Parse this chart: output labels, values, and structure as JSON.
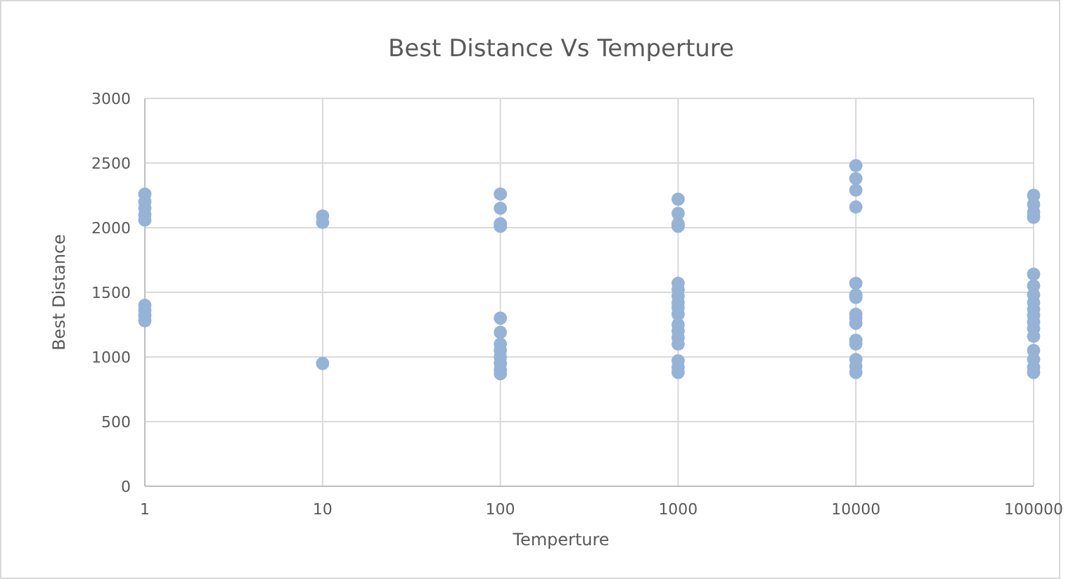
{
  "chart_data": {
    "type": "scatter",
    "title": "Best Distance Vs Temperture",
    "xlabel": "Temperture",
    "ylabel": "Best Distance",
    "log": "x",
    "grid": true,
    "marker": "circle",
    "xlim": [
      1,
      100000
    ],
    "xticks": [
      1,
      10,
      100,
      1000,
      10000,
      100000
    ],
    "ylim": [
      0,
      3000
    ],
    "yticks": [
      0,
      500,
      1000,
      1500,
      2000,
      2500,
      3000
    ],
    "series": [
      {
        "color": "#95b3d7",
        "x": [
          1,
          1,
          1,
          1,
          1,
          1,
          1,
          1,
          1,
          10,
          10,
          10,
          100,
          100,
          100,
          100,
          100,
          100,
          100,
          100,
          100,
          100,
          100,
          100,
          1000,
          1000,
          1000,
          1000,
          1000,
          1000,
          1000,
          1000,
          1000,
          1000,
          1000,
          1000,
          1000,
          1000,
          1000,
          1000,
          1000,
          10000,
          10000,
          10000,
          10000,
          10000,
          10000,
          10000,
          10000,
          10000,
          10000,
          10000,
          10000,
          10000,
          10000,
          10000,
          100000,
          100000,
          100000,
          100000,
          100000,
          100000,
          100000,
          100000,
          100000,
          100000,
          100000,
          100000,
          100000,
          100000,
          100000,
          100000,
          100000
        ],
        "values": [
          2260,
          2200,
          2150,
          2100,
          2060,
          1400,
          1360,
          1320,
          1280,
          2090,
          2040,
          950,
          2260,
          2150,
          2030,
          2010,
          1300,
          1190,
          1100,
          1050,
          1000,
          950,
          900,
          870,
          2220,
          2110,
          2030,
          2010,
          1570,
          1520,
          1470,
          1420,
          1380,
          1330,
          1250,
          1200,
          1150,
          1100,
          970,
          920,
          880,
          2480,
          2380,
          2290,
          2160,
          1570,
          1480,
          1460,
          1330,
          1300,
          1260,
          1130,
          1100,
          980,
          930,
          880,
          2250,
          2180,
          2120,
          2080,
          1640,
          1550,
          1480,
          1420,
          1370,
          1320,
          1270,
          1220,
          1160,
          1050,
          980,
          920,
          880
        ]
      }
    ]
  }
}
